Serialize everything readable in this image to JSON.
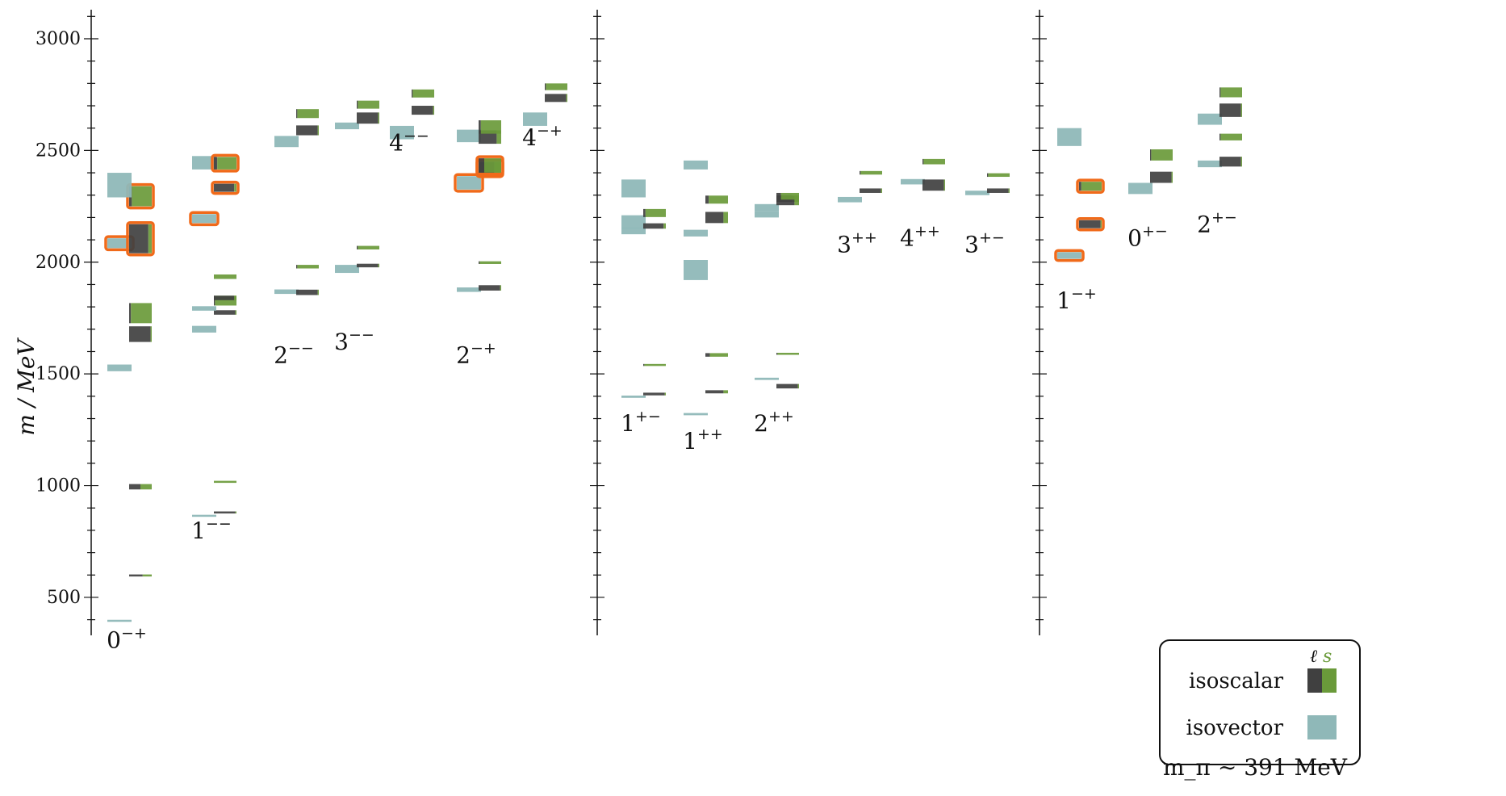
{
  "colors": {
    "isoscalar_light": "#404040",
    "isoscalar_strange": "#6a9a3a",
    "isovector": "#8fb8b8",
    "highlight": "#f06a1a",
    "axis": "#111111"
  },
  "chart_data": {
    "type": "spectrum",
    "ylabel": "m / MeV",
    "ylim": [
      330,
      3130
    ],
    "yticks": [
      500,
      1000,
      1500,
      2000,
      2500,
      3000
    ],
    "footer_note": "m_π ∼ 391 MeV",
    "legend": {
      "header_l": "ℓ",
      "header_s": "s",
      "isoscalar_label": "isoscalar",
      "isovector_label": "isovector"
    },
    "channels": [
      {
        "id": "0mp",
        "base": "0",
        "sup": "−+",
        "label_m": 310
      },
      {
        "id": "1mm",
        "base": "1",
        "sup": "−−",
        "label_m": 800
      },
      {
        "id": "2mm",
        "base": "2",
        "sup": "−−",
        "label_m": 1585
      },
      {
        "id": "3mm",
        "base": "3",
        "sup": "−−",
        "label_m": 1645
      },
      {
        "id": "4mm",
        "base": "4",
        "sup": "−−",
        "label_m": 2535
      },
      {
        "id": "2mp",
        "base": "2",
        "sup": "−+",
        "label_m": 1585
      },
      {
        "id": "4mp",
        "base": "4",
        "sup": "−+",
        "label_m": 2560
      },
      {
        "id": "1pm",
        "base": "1",
        "sup": "+−",
        "label_m": 1280
      },
      {
        "id": "1pp",
        "base": "1",
        "sup": "++",
        "label_m": 1200
      },
      {
        "id": "2pp",
        "base": "2",
        "sup": "++",
        "label_m": 1280
      },
      {
        "id": "3pp",
        "base": "3",
        "sup": "++",
        "label_m": 2080
      },
      {
        "id": "4pp",
        "base": "4",
        "sup": "++",
        "label_m": 2110
      },
      {
        "id": "3pm",
        "base": "3",
        "sup": "+−",
        "label_m": 2080
      },
      {
        "id": "1mp",
        "base": "1",
        "sup": "−+",
        "label_m": 1830
      },
      {
        "id": "0pm",
        "base": "0",
        "sup": "+−",
        "label_m": 2110
      },
      {
        "id": "2pm",
        "base": "2",
        "sup": "+−",
        "label_m": 2170
      }
    ],
    "states": [
      {
        "ch": "0mp",
        "type": "isovector",
        "m": 395,
        "dm": 3
      },
      {
        "ch": "0mp",
        "type": "isoscalar",
        "m": 598,
        "dm": 3,
        "s": 0.4
      },
      {
        "ch": "0mp",
        "type": "isoscalar",
        "m": 995,
        "dm": 12,
        "s": 0.5
      },
      {
        "ch": "0mp",
        "type": "isovector",
        "m": 1527,
        "dm": 15
      },
      {
        "ch": "0mp",
        "type": "isoscalar",
        "m": 1678,
        "dm": 35,
        "s": 0.05
      },
      {
        "ch": "0mp",
        "type": "isoscalar",
        "m": 1772,
        "dm": 45,
        "s": 0.92
      },
      {
        "ch": "0mp",
        "type": "isovector",
        "m": 2085,
        "dm": 22,
        "hl": true
      },
      {
        "ch": "0mp",
        "type": "isoscalar",
        "m": 2105,
        "dm": 65,
        "s": 0.15,
        "hl": true
      },
      {
        "ch": "0mp",
        "type": "isoscalar",
        "m": 2295,
        "dm": 45,
        "s": 0.88,
        "hl": true
      },
      {
        "ch": "0mp",
        "type": "isovector",
        "m": 2345,
        "dm": 55
      },
      {
        "ch": "1mm",
        "type": "isovector",
        "m": 865,
        "dm": 3
      },
      {
        "ch": "1mm",
        "type": "isoscalar",
        "m": 880,
        "dm": 3,
        "s": 0.05
      },
      {
        "ch": "1mm",
        "type": "isoscalar",
        "m": 1017,
        "dm": 2,
        "s": 1.0
      },
      {
        "ch": "1mm",
        "type": "isovector",
        "m": 1700,
        "dm": 15
      },
      {
        "ch": "1mm",
        "type": "isoscalar",
        "m": 1775,
        "dm": 10,
        "s": 0.05
      },
      {
        "ch": "1mm",
        "type": "isovector",
        "m": 1793,
        "dm": 10
      },
      {
        "ch": "1mm",
        "type": "isoscalar",
        "m": 1828,
        "dm": 22,
        "s": 0.95
      },
      {
        "ch": "1mm",
        "type": "isoscalar",
        "m": 1840,
        "dm": 10,
        "s": 0.1
      },
      {
        "ch": "1mm",
        "type": "isoscalar",
        "m": 1935,
        "dm": 10,
        "s": 1.0
      },
      {
        "ch": "1mm",
        "type": "isovector",
        "m": 2195,
        "dm": 20,
        "hl": true
      },
      {
        "ch": "1mm",
        "type": "isoscalar",
        "m": 2333,
        "dm": 18,
        "s": 0.1,
        "hl": true
      },
      {
        "ch": "1mm",
        "type": "isovector",
        "m": 2445,
        "dm": 30
      },
      {
        "ch": "1mm",
        "type": "isoscalar",
        "m": 2443,
        "dm": 28,
        "s": 0.85,
        "hl": true
      },
      {
        "ch": "2mm",
        "type": "isovector",
        "m": 1868,
        "dm": 10
      },
      {
        "ch": "2mm",
        "type": "isoscalar",
        "m": 1865,
        "dm": 12,
        "s": 0.05
      },
      {
        "ch": "2mm",
        "type": "isoscalar",
        "m": 1980,
        "dm": 8,
        "s": 0.95
      },
      {
        "ch": "2mm",
        "type": "isovector",
        "m": 2540,
        "dm": 25
      },
      {
        "ch": "2mm",
        "type": "isoscalar",
        "m": 2590,
        "dm": 22,
        "s": 0.05
      },
      {
        "ch": "2mm",
        "type": "isoscalar",
        "m": 2665,
        "dm": 20,
        "s": 0.95
      },
      {
        "ch": "3mm",
        "type": "isovector",
        "m": 1970,
        "dm": 18
      },
      {
        "ch": "3mm",
        "type": "isoscalar",
        "m": 1985,
        "dm": 8,
        "s": 0.05
      },
      {
        "ch": "3mm",
        "type": "isoscalar",
        "m": 2065,
        "dm": 8,
        "s": 0.95
      },
      {
        "ch": "3mm",
        "type": "isovector",
        "m": 2610,
        "dm": 15
      },
      {
        "ch": "3mm",
        "type": "isoscalar",
        "m": 2645,
        "dm": 25,
        "s": 0.05
      },
      {
        "ch": "3mm",
        "type": "isoscalar",
        "m": 2705,
        "dm": 18,
        "s": 0.95
      },
      {
        "ch": "4mm",
        "type": "isovector",
        "m": 2580,
        "dm": 30
      },
      {
        "ch": "4mm",
        "type": "isoscalar",
        "m": 2680,
        "dm": 20,
        "s": 0.05
      },
      {
        "ch": "4mm",
        "type": "isoscalar",
        "m": 2755,
        "dm": 18,
        "s": 0.95
      },
      {
        "ch": "2mp",
        "type": "isovector",
        "m": 1877,
        "dm": 10
      },
      {
        "ch": "2mp",
        "type": "isoscalar",
        "m": 1885,
        "dm": 12,
        "s": 0.05
      },
      {
        "ch": "2mp",
        "type": "isoscalar",
        "m": 1998,
        "dm": 6,
        "s": 0.95
      },
      {
        "ch": "2mp",
        "type": "isovector",
        "m": 2355,
        "dm": 30,
        "hl": true
      },
      {
        "ch": "2mp",
        "type": "isoscalar",
        "m": 2420,
        "dm": 30,
        "s": 0.3,
        "hl": true
      },
      {
        "ch": "2mp",
        "type": "isoscalar",
        "m": 2433,
        "dm": 32,
        "s": 0.75,
        "hl": true
      },
      {
        "ch": "2mp",
        "type": "isovector",
        "m": 2565,
        "dm": 28
      },
      {
        "ch": "2mp",
        "type": "isoscalar",
        "m": 2560,
        "dm": 30,
        "s": 0.2
      },
      {
        "ch": "2mp",
        "type": "isoscalar",
        "m": 2605,
        "dm": 30,
        "s": 0.9
      },
      {
        "ch": "4mp",
        "type": "isovector",
        "m": 2640,
        "dm": 30
      },
      {
        "ch": "4mp",
        "type": "isoscalar",
        "m": 2735,
        "dm": 18,
        "s": 0.05
      },
      {
        "ch": "4mp",
        "type": "isoscalar",
        "m": 2785,
        "dm": 15,
        "s": 0.95
      },
      {
        "ch": "1pm",
        "type": "isovector",
        "m": 1398,
        "dm": 5
      },
      {
        "ch": "1pm",
        "type": "isoscalar",
        "m": 1410,
        "dm": 6,
        "s": 0.05
      },
      {
        "ch": "1pm",
        "type": "isoscalar",
        "m": 1540,
        "dm": 4,
        "s": 0.95
      },
      {
        "ch": "1pm",
        "type": "isovector",
        "m": 2140,
        "dm": 15
      },
      {
        "ch": "1pm",
        "type": "isovector",
        "m": 2180,
        "dm": 30
      },
      {
        "ch": "1pm",
        "type": "isoscalar",
        "m": 2162,
        "dm": 12,
        "s": 0.1
      },
      {
        "ch": "1pm",
        "type": "isoscalar",
        "m": 2220,
        "dm": 18,
        "s": 0.9
      },
      {
        "ch": "1pm",
        "type": "isovector",
        "m": 2330,
        "dm": 40
      },
      {
        "ch": "1pp",
        "type": "isovector",
        "m": 1320,
        "dm": 5
      },
      {
        "ch": "1pp",
        "type": "isoscalar",
        "m": 1420,
        "dm": 7,
        "s": 0.2
      },
      {
        "ch": "1pp",
        "type": "isoscalar",
        "m": 1585,
        "dm": 8,
        "s": 0.8
      },
      {
        "ch": "1pp",
        "type": "isovector",
        "m": 1965,
        "dm": 45
      },
      {
        "ch": "1pp",
        "type": "isovector",
        "m": 2130,
        "dm": 15
      },
      {
        "ch": "1pp",
        "type": "isoscalar",
        "m": 2200,
        "dm": 25,
        "s": 0.2
      },
      {
        "ch": "1pp",
        "type": "isoscalar",
        "m": 2280,
        "dm": 18,
        "s": 0.85
      },
      {
        "ch": "1pp",
        "type": "isovector",
        "m": 2435,
        "dm": 20
      },
      {
        "ch": "2pp",
        "type": "isovector",
        "m": 1478,
        "dm": 5
      },
      {
        "ch": "2pp",
        "type": "isoscalar",
        "m": 1445,
        "dm": 10,
        "s": 0.05
      },
      {
        "ch": "2pp",
        "type": "isoscalar",
        "m": 1590,
        "dm": 4,
        "s": 0.95
      },
      {
        "ch": "2pp",
        "type": "isovector",
        "m": 2215,
        "dm": 15
      },
      {
        "ch": "2pp",
        "type": "isovector",
        "m": 2245,
        "dm": 15
      },
      {
        "ch": "2pp",
        "type": "isoscalar",
        "m": 2285,
        "dm": 15,
        "s": 0.3
      },
      {
        "ch": "2pp",
        "type": "isoscalar",
        "m": 2275,
        "dm": 20,
        "s": 0.2
      },
      {
        "ch": "2pp",
        "type": "isoscalar",
        "m": 2295,
        "dm": 15,
        "s": 0.8
      },
      {
        "ch": "3pp",
        "type": "isovector",
        "m": 2280,
        "dm": 12
      },
      {
        "ch": "3pp",
        "type": "isoscalar",
        "m": 2320,
        "dm": 10,
        "s": 0.05
      },
      {
        "ch": "3pp",
        "type": "isoscalar",
        "m": 2400,
        "dm": 8,
        "s": 0.95
      },
      {
        "ch": "4pp",
        "type": "isovector",
        "m": 2360,
        "dm": 12
      },
      {
        "ch": "4pp",
        "type": "isoscalar",
        "m": 2345,
        "dm": 25,
        "s": 0.05
      },
      {
        "ch": "4pp",
        "type": "isoscalar",
        "m": 2450,
        "dm": 12,
        "s": 0.95
      },
      {
        "ch": "3pm",
        "type": "isovector",
        "m": 2310,
        "dm": 10
      },
      {
        "ch": "3pm",
        "type": "isoscalar",
        "m": 2320,
        "dm": 10,
        "s": 0.05
      },
      {
        "ch": "3pm",
        "type": "isoscalar",
        "m": 2390,
        "dm": 8,
        "s": 0.95
      },
      {
        "ch": "1mp",
        "type": "isovector",
        "m": 2030,
        "dm": 15,
        "hl": true
      },
      {
        "ch": "1mp",
        "type": "isoscalar",
        "m": 2170,
        "dm": 18,
        "s": 0.05,
        "hl": true
      },
      {
        "ch": "1mp",
        "type": "isoscalar",
        "m": 2340,
        "dm": 20,
        "s": 0.9,
        "hl": true
      },
      {
        "ch": "1mp",
        "type": "isovector",
        "m": 2560,
        "dm": 40
      },
      {
        "ch": "0pm",
        "type": "isovector",
        "m": 2330,
        "dm": 25
      },
      {
        "ch": "0pm",
        "type": "isoscalar",
        "m": 2380,
        "dm": 25,
        "s": 0.05
      },
      {
        "ch": "0pm",
        "type": "isoscalar",
        "m": 2480,
        "dm": 25,
        "s": 0.95
      },
      {
        "ch": "2pm",
        "type": "isovector",
        "m": 2440,
        "dm": 15
      },
      {
        "ch": "2pm",
        "type": "isoscalar",
        "m": 2450,
        "dm": 22,
        "s": 0.05
      },
      {
        "ch": "2pm",
        "type": "isoscalar",
        "m": 2560,
        "dm": 15,
        "s": 0.95
      },
      {
        "ch": "2pm",
        "type": "isovector",
        "m": 2640,
        "dm": 25
      },
      {
        "ch": "2pm",
        "type": "isoscalar",
        "m": 2680,
        "dm": 30,
        "s": 0.05
      },
      {
        "ch": "2pm",
        "type": "isoscalar",
        "m": 2760,
        "dm": 22,
        "s": 0.95
      }
    ]
  }
}
